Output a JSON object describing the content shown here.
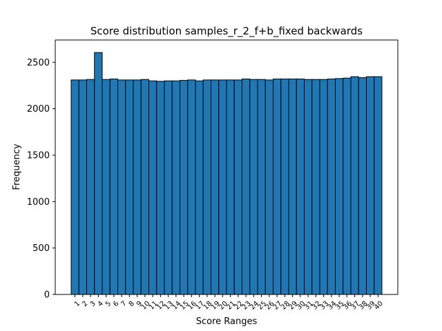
{
  "chart_data": {
    "type": "bar",
    "title": "Score distribution samples_r_2_f+b_fixed backwards",
    "xlabel": "Score Ranges",
    "ylabel": "Frequency",
    "ylim": [
      0,
      2740
    ],
    "yticks": [
      0,
      500,
      1000,
      1500,
      2000,
      2500
    ],
    "grid": false,
    "bar_color": "#1f77b4",
    "edge_color": "#000000",
    "categories": [
      "1",
      "2",
      "3",
      "4",
      "5",
      "6",
      "7",
      "8",
      "9",
      "10",
      "11",
      "12",
      "13",
      "14",
      "15",
      "16",
      "17",
      "18",
      "19",
      "20",
      "21",
      "22",
      "23",
      "24",
      "25",
      "26",
      "27",
      "28",
      "29",
      "30",
      "31",
      "32",
      "33",
      "34",
      "35",
      "36",
      "37",
      "38",
      "39",
      "40"
    ],
    "values": [
      2310,
      2310,
      2315,
      2605,
      2315,
      2320,
      2310,
      2310,
      2310,
      2315,
      2300,
      2295,
      2300,
      2300,
      2305,
      2310,
      2300,
      2310,
      2310,
      2310,
      2310,
      2310,
      2320,
      2315,
      2315,
      2310,
      2320,
      2320,
      2320,
      2320,
      2315,
      2315,
      2315,
      2320,
      2325,
      2330,
      2345,
      2335,
      2345,
      2345
    ]
  }
}
